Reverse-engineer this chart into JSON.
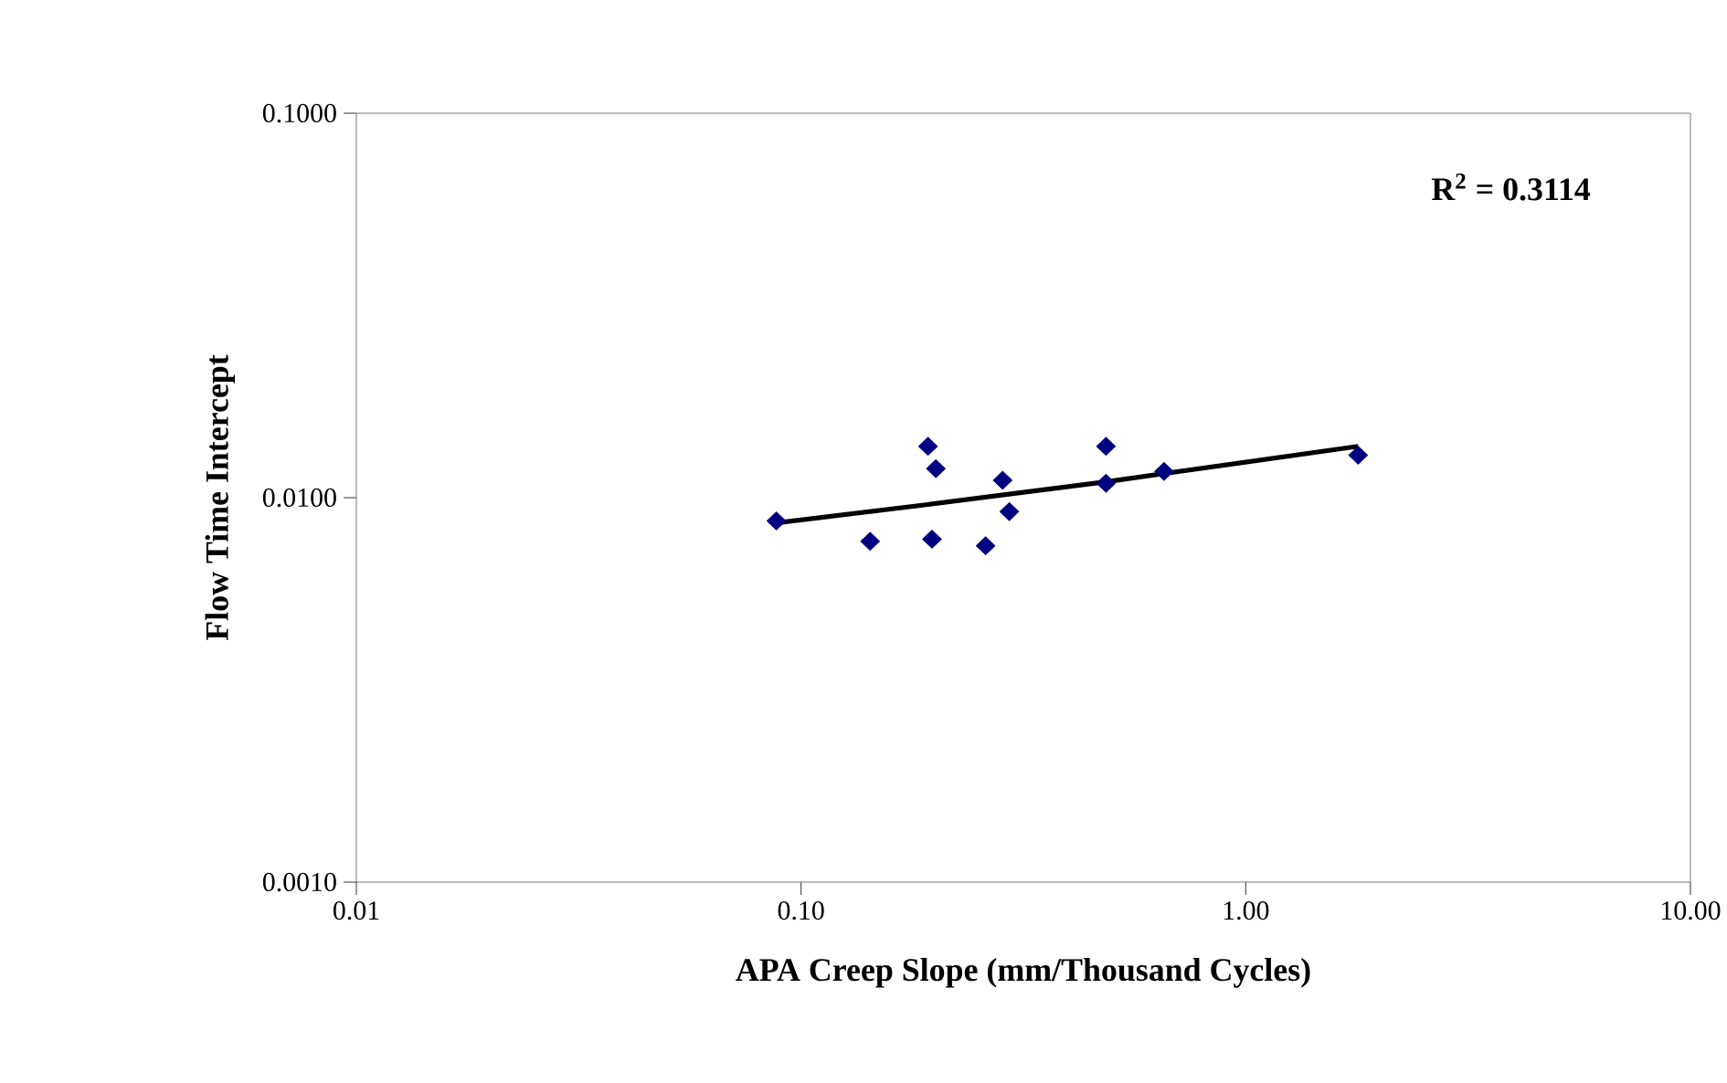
{
  "chart_data": {
    "type": "scatter",
    "xlabel": "APA Creep Slope (mm/Thousand Cycles)",
    "ylabel": "Flow Time Intercept",
    "log": "xy",
    "xlim": [
      0.01,
      10
    ],
    "ylim": [
      0.001,
      0.1
    ],
    "xticks": [
      {
        "value": 0.01,
        "label": "0.01"
      },
      {
        "value": 0.1,
        "label": "0.10"
      },
      {
        "value": 1,
        "label": "1.00"
      },
      {
        "value": 10,
        "label": "10.00"
      }
    ],
    "yticks": [
      {
        "value": 0.001,
        "label": "0.0010"
      },
      {
        "value": 0.01,
        "label": "0.0100"
      },
      {
        "value": 0.1,
        "label": "0.1000"
      }
    ],
    "annotations": [
      "R$^{2}$ = 0.3114"
    ],
    "series": [
      {
        "color": "#000080",
        "marker": "diamond",
        "x": [
          0.088,
          0.143,
          0.193,
          0.201,
          0.197,
          0.26,
          0.284,
          0.294,
          0.485,
          0.485,
          0.655,
          1.79
        ],
        "values": [
          0.0087,
          0.0077,
          0.0136,
          0.0119,
          0.0078,
          0.0075,
          0.0111,
          0.0092,
          0.0136,
          0.0109,
          0.0117,
          0.0129
        ]
      },
      {
        "type": "line",
        "color": "#000000",
        "marker": "none",
        "x": [
          0.088,
          0.193,
          0.485,
          1.79
        ],
        "values": [
          0.0086,
          0.0096,
          0.011,
          0.0136
        ]
      }
    ]
  }
}
